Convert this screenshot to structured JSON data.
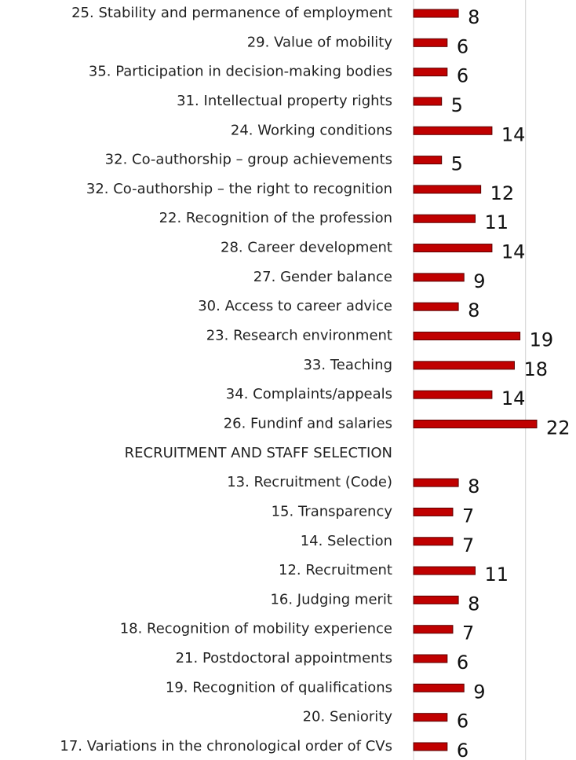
{
  "chart_data": {
    "type": "bar",
    "orientation": "horizontal",
    "categories": [
      "25. Stability and permanence of employment",
      "29. Value of mobility",
      "35. Participation in decision-making bodies",
      "31. Intellectual property rights",
      "24. Working conditions",
      "32. Co-authorship – group achievements",
      "32. Co-authorship – the right to recognition",
      "22. Recognition of the profession",
      "28. Career development",
      "27. Gender balance",
      "30. Access to career advice",
      "23. Research environment",
      "33. Teaching",
      "34. Complaints/appeals",
      "26. Fundinf and salaries",
      "RECRUITMENT AND STAFF SELECTION",
      "13. Recruitment (Code)",
      "15. Transparency",
      "14. Selection",
      "12. Recruitment",
      "16. Judging merit",
      "18. Recognition of mobility experience",
      "21. Postdoctoral appointments",
      "19. Recognition of qualifications",
      "20. Seniority",
      "17. Variations in the chronological order of CVs"
    ],
    "values": [
      8,
      6,
      6,
      5,
      14,
      5,
      12,
      11,
      14,
      9,
      8,
      19,
      18,
      14,
      22,
      null,
      8,
      7,
      7,
      11,
      8,
      7,
      6,
      9,
      6,
      6
    ],
    "color": "#c00000",
    "xlim": [
      0,
      22
    ],
    "xgrid": [
      0,
      20
    ]
  }
}
